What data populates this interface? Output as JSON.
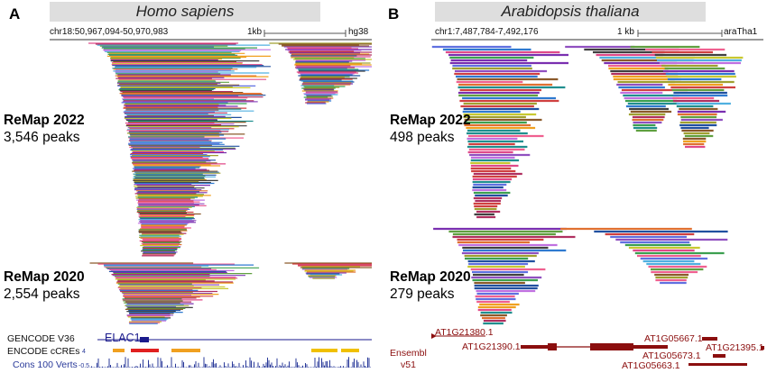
{
  "panel_a": {
    "letter": "A",
    "species": "Homo sapiens",
    "coordinates": "chr18:50,967,094-50,970,983",
    "scale": "1kb",
    "genome": "hg38",
    "remap2022": {
      "label": "ReMap 2022",
      "peaks": "3,546 peaks"
    },
    "remap2020": {
      "label": "ReMap 2020",
      "peaks": "2,554 peaks"
    },
    "tracks": {
      "gencode": "GENCODE V36",
      "gene": "ELAC1",
      "ccres": "ENCODE cCREs",
      "cons": "Cons 100 Verts",
      "cons_max": "4",
      "cons_min": "-0.5"
    }
  },
  "panel_b": {
    "letter": "B",
    "species": "Arabidopsis thaliana",
    "coordinates": "chr1:7,487,784-7,492,176",
    "scale": "1 kb",
    "genome": "araTha1",
    "remap2022": {
      "label": "ReMap 2022",
      "peaks": "498 peaks"
    },
    "remap2020": {
      "label": "ReMap 2020",
      "peaks": "279 peaks"
    },
    "annotation": {
      "source_line1": "Ensembl",
      "source_line2": "v51"
    },
    "transcripts": [
      "AT1G21380.1",
      "AT1G21390.1",
      "AT1G05667.1",
      "AT1G21395.1",
      "AT1G05673.1",
      "AT1G05663.1"
    ]
  },
  "colors": {
    "title_bar": "#dedede",
    "gene_blue": "#1a1a8c",
    "ccre_orange": "#f0a020",
    "ccre_red": "#e02020",
    "ccre_yellow": "#f0c000",
    "cons_blue": "#2a3a9a",
    "ensembl_red": "#8b0e0e"
  }
}
